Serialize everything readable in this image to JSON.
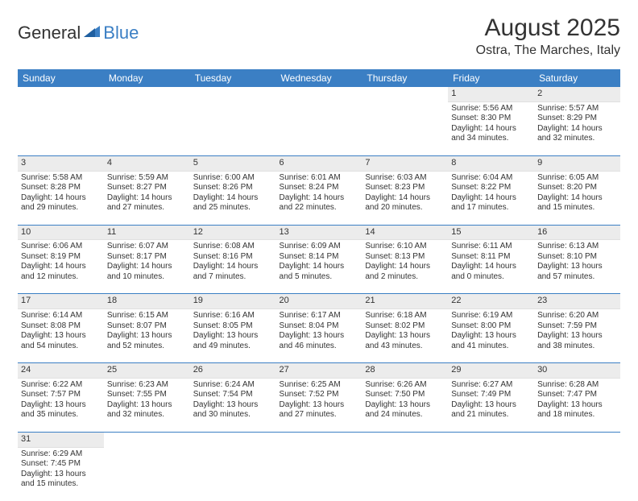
{
  "logo": {
    "part1": "General",
    "part2": "Blue"
  },
  "title": "August 2025",
  "location": "Ostra, The Marches, Italy",
  "colors": {
    "header_bg": "#3b7fc4",
    "header_text": "#ffffff",
    "daynum_bg": "#ececec",
    "week_sep": "#3b7fc4",
    "text": "#333333"
  },
  "day_headers": [
    "Sunday",
    "Monday",
    "Tuesday",
    "Wednesday",
    "Thursday",
    "Friday",
    "Saturday"
  ],
  "weeks": [
    [
      null,
      null,
      null,
      null,
      null,
      {
        "n": "1",
        "sr": "Sunrise: 5:56 AM",
        "ss": "Sunset: 8:30 PM",
        "dl": "Daylight: 14 hours and 34 minutes."
      },
      {
        "n": "2",
        "sr": "Sunrise: 5:57 AM",
        "ss": "Sunset: 8:29 PM",
        "dl": "Daylight: 14 hours and 32 minutes."
      }
    ],
    [
      {
        "n": "3",
        "sr": "Sunrise: 5:58 AM",
        "ss": "Sunset: 8:28 PM",
        "dl": "Daylight: 14 hours and 29 minutes."
      },
      {
        "n": "4",
        "sr": "Sunrise: 5:59 AM",
        "ss": "Sunset: 8:27 PM",
        "dl": "Daylight: 14 hours and 27 minutes."
      },
      {
        "n": "5",
        "sr": "Sunrise: 6:00 AM",
        "ss": "Sunset: 8:26 PM",
        "dl": "Daylight: 14 hours and 25 minutes."
      },
      {
        "n": "6",
        "sr": "Sunrise: 6:01 AM",
        "ss": "Sunset: 8:24 PM",
        "dl": "Daylight: 14 hours and 22 minutes."
      },
      {
        "n": "7",
        "sr": "Sunrise: 6:03 AM",
        "ss": "Sunset: 8:23 PM",
        "dl": "Daylight: 14 hours and 20 minutes."
      },
      {
        "n": "8",
        "sr": "Sunrise: 6:04 AM",
        "ss": "Sunset: 8:22 PM",
        "dl": "Daylight: 14 hours and 17 minutes."
      },
      {
        "n": "9",
        "sr": "Sunrise: 6:05 AM",
        "ss": "Sunset: 8:20 PM",
        "dl": "Daylight: 14 hours and 15 minutes."
      }
    ],
    [
      {
        "n": "10",
        "sr": "Sunrise: 6:06 AM",
        "ss": "Sunset: 8:19 PM",
        "dl": "Daylight: 14 hours and 12 minutes."
      },
      {
        "n": "11",
        "sr": "Sunrise: 6:07 AM",
        "ss": "Sunset: 8:17 PM",
        "dl": "Daylight: 14 hours and 10 minutes."
      },
      {
        "n": "12",
        "sr": "Sunrise: 6:08 AM",
        "ss": "Sunset: 8:16 PM",
        "dl": "Daylight: 14 hours and 7 minutes."
      },
      {
        "n": "13",
        "sr": "Sunrise: 6:09 AM",
        "ss": "Sunset: 8:14 PM",
        "dl": "Daylight: 14 hours and 5 minutes."
      },
      {
        "n": "14",
        "sr": "Sunrise: 6:10 AM",
        "ss": "Sunset: 8:13 PM",
        "dl": "Daylight: 14 hours and 2 minutes."
      },
      {
        "n": "15",
        "sr": "Sunrise: 6:11 AM",
        "ss": "Sunset: 8:11 PM",
        "dl": "Daylight: 14 hours and 0 minutes."
      },
      {
        "n": "16",
        "sr": "Sunrise: 6:13 AM",
        "ss": "Sunset: 8:10 PM",
        "dl": "Daylight: 13 hours and 57 minutes."
      }
    ],
    [
      {
        "n": "17",
        "sr": "Sunrise: 6:14 AM",
        "ss": "Sunset: 8:08 PM",
        "dl": "Daylight: 13 hours and 54 minutes."
      },
      {
        "n": "18",
        "sr": "Sunrise: 6:15 AM",
        "ss": "Sunset: 8:07 PM",
        "dl": "Daylight: 13 hours and 52 minutes."
      },
      {
        "n": "19",
        "sr": "Sunrise: 6:16 AM",
        "ss": "Sunset: 8:05 PM",
        "dl": "Daylight: 13 hours and 49 minutes."
      },
      {
        "n": "20",
        "sr": "Sunrise: 6:17 AM",
        "ss": "Sunset: 8:04 PM",
        "dl": "Daylight: 13 hours and 46 minutes."
      },
      {
        "n": "21",
        "sr": "Sunrise: 6:18 AM",
        "ss": "Sunset: 8:02 PM",
        "dl": "Daylight: 13 hours and 43 minutes."
      },
      {
        "n": "22",
        "sr": "Sunrise: 6:19 AM",
        "ss": "Sunset: 8:00 PM",
        "dl": "Daylight: 13 hours and 41 minutes."
      },
      {
        "n": "23",
        "sr": "Sunrise: 6:20 AM",
        "ss": "Sunset: 7:59 PM",
        "dl": "Daylight: 13 hours and 38 minutes."
      }
    ],
    [
      {
        "n": "24",
        "sr": "Sunrise: 6:22 AM",
        "ss": "Sunset: 7:57 PM",
        "dl": "Daylight: 13 hours and 35 minutes."
      },
      {
        "n": "25",
        "sr": "Sunrise: 6:23 AM",
        "ss": "Sunset: 7:55 PM",
        "dl": "Daylight: 13 hours and 32 minutes."
      },
      {
        "n": "26",
        "sr": "Sunrise: 6:24 AM",
        "ss": "Sunset: 7:54 PM",
        "dl": "Daylight: 13 hours and 30 minutes."
      },
      {
        "n": "27",
        "sr": "Sunrise: 6:25 AM",
        "ss": "Sunset: 7:52 PM",
        "dl": "Daylight: 13 hours and 27 minutes."
      },
      {
        "n": "28",
        "sr": "Sunrise: 6:26 AM",
        "ss": "Sunset: 7:50 PM",
        "dl": "Daylight: 13 hours and 24 minutes."
      },
      {
        "n": "29",
        "sr": "Sunrise: 6:27 AM",
        "ss": "Sunset: 7:49 PM",
        "dl": "Daylight: 13 hours and 21 minutes."
      },
      {
        "n": "30",
        "sr": "Sunrise: 6:28 AM",
        "ss": "Sunset: 7:47 PM",
        "dl": "Daylight: 13 hours and 18 minutes."
      }
    ],
    [
      {
        "n": "31",
        "sr": "Sunrise: 6:29 AM",
        "ss": "Sunset: 7:45 PM",
        "dl": "Daylight: 13 hours and 15 minutes."
      },
      null,
      null,
      null,
      null,
      null,
      null
    ]
  ]
}
